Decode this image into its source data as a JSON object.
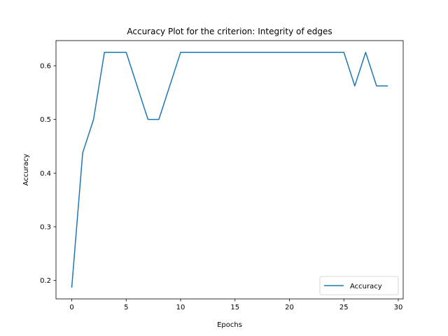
{
  "chart_data": {
    "type": "line",
    "title": "Accuracy Plot for the criterion: Integrity of edges",
    "xlabel": "Epochs",
    "ylabel": "Accuracy",
    "xlim": [
      -1.45,
      30.45
    ],
    "ylim": [
      0.1656,
      0.6469
    ],
    "xticks": [
      0,
      5,
      10,
      15,
      20,
      25,
      30
    ],
    "xtick_labels": [
      "0",
      "5",
      "10",
      "15",
      "20",
      "25",
      "30"
    ],
    "yticks": [
      0.2,
      0.3,
      0.4,
      0.5,
      0.6
    ],
    "ytick_labels": [
      "0.2",
      "0.3",
      "0.4",
      "0.5",
      "0.6"
    ],
    "grid": false,
    "legend": {
      "position": "lower-right"
    },
    "series": [
      {
        "name": "Accuracy",
        "color": "#1f77b4",
        "x": [
          0,
          1,
          2,
          3,
          4,
          5,
          6,
          7,
          8,
          9,
          10,
          11,
          12,
          13,
          14,
          15,
          16,
          17,
          18,
          19,
          20,
          21,
          22,
          23,
          24,
          25,
          26,
          27,
          28,
          29
        ],
        "y": [
          0.1875,
          0.4375,
          0.5,
          0.625,
          0.625,
          0.625,
          0.5625,
          0.5,
          0.5,
          0.5625,
          0.625,
          0.625,
          0.625,
          0.625,
          0.625,
          0.625,
          0.625,
          0.625,
          0.625,
          0.625,
          0.625,
          0.625,
          0.625,
          0.625,
          0.625,
          0.625,
          0.5625,
          0.625,
          0.5625,
          0.5625
        ]
      }
    ]
  }
}
